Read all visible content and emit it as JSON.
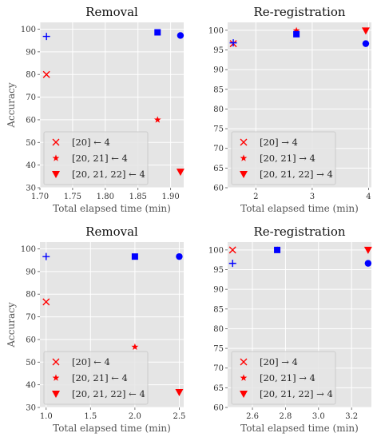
{
  "chart_data": [
    {
      "type": "scatter",
      "title": "Removal",
      "xlabel": "Total elapsed time (min)",
      "ylabel": "Accuracy",
      "xlim": [
        1.7,
        1.92
      ],
      "ylim": [
        30,
        103
      ],
      "xticks": [
        1.7,
        1.75,
        1.8,
        1.85,
        1.9
      ],
      "xtick_labels": [
        "1.70",
        "1.75",
        "1.80",
        "1.85",
        "1.90"
      ],
      "yticks": [
        30,
        40,
        50,
        60,
        70,
        80,
        90,
        100
      ],
      "ytick_labels": [
        "30",
        "40",
        "50",
        "60",
        "70",
        "80",
        "90",
        "100"
      ],
      "grid": true,
      "legend_position": "lower-left",
      "series": [
        {
          "name": "[20] ← 4",
          "marker": "x",
          "color": "#ff0000",
          "points": [
            [
              1.71,
              80.0
            ]
          ]
        },
        {
          "name": "[20, 21] ← 4",
          "marker": "star",
          "color": "#ff0000",
          "points": [
            [
              1.88,
              60.0
            ]
          ]
        },
        {
          "name": "[20, 21, 22] ← 4",
          "marker": "triangle-down",
          "color": "#ff0000",
          "points": [
            [
              1.915,
              37.0
            ]
          ]
        },
        {
          "marker": "plus",
          "color": "#0000ff",
          "points": [
            [
              1.71,
              96.8
            ]
          ]
        },
        {
          "marker": "square",
          "color": "#0000ff",
          "points": [
            [
              1.88,
              98.6
            ]
          ]
        },
        {
          "marker": "circle",
          "color": "#0000ff",
          "points": [
            [
              1.915,
              97.2
            ]
          ]
        }
      ]
    },
    {
      "type": "scatter",
      "title": "Re-registration",
      "xlabel": "Total elapsed time (min)",
      "ylabel": "",
      "xlim": [
        1.5,
        4.05
      ],
      "ylim": [
        60,
        102
      ],
      "xticks": [
        2,
        3,
        4
      ],
      "xtick_labels": [
        "2",
        "3",
        "4"
      ],
      "yticks": [
        60,
        65,
        70,
        75,
        80,
        85,
        90,
        95,
        100
      ],
      "ytick_labels": [
        "60",
        "65",
        "70",
        "75",
        "80",
        "85",
        "90",
        "95",
        "100"
      ],
      "grid": true,
      "legend_position": "lower-left",
      "series": [
        {
          "name": "[20] → 4",
          "marker": "x",
          "color": "#ff0000",
          "points": [
            [
              1.6,
              96.6
            ]
          ]
        },
        {
          "name": "[20, 21] → 4",
          "marker": "star",
          "color": "#ff0000",
          "points": [
            [
              2.72,
              99.9
            ]
          ]
        },
        {
          "name": "[20, 21, 22] → 4",
          "marker": "triangle-down",
          "color": "#ff0000",
          "points": [
            [
              3.95,
              99.9
            ]
          ]
        },
        {
          "marker": "plus",
          "color": "#0000ff",
          "points": [
            [
              1.6,
              96.8
            ]
          ]
        },
        {
          "marker": "square",
          "color": "#0000ff",
          "points": [
            [
              2.72,
              99.0
            ]
          ]
        },
        {
          "marker": "circle",
          "color": "#0000ff",
          "points": [
            [
              3.95,
              96.6
            ]
          ]
        }
      ]
    },
    {
      "type": "scatter",
      "title": "Removal",
      "xlabel": "Total elapsed time (min)",
      "ylabel": "Accuracy",
      "xlim": [
        0.93,
        2.55
      ],
      "ylim": [
        30,
        103
      ],
      "xticks": [
        1.0,
        1.5,
        2.0,
        2.5
      ],
      "xtick_labels": [
        "1.0",
        "1.5",
        "2.0",
        "2.5"
      ],
      "yticks": [
        30,
        40,
        50,
        60,
        70,
        80,
        90,
        100
      ],
      "ytick_labels": [
        "30",
        "40",
        "50",
        "60",
        "70",
        "80",
        "90",
        "100"
      ],
      "grid": true,
      "legend_position": "lower-left",
      "series": [
        {
          "name": "[20] ← 4",
          "marker": "x",
          "color": "#ff0000",
          "points": [
            [
              1.0,
              76.6
            ]
          ]
        },
        {
          "name": "[20, 21] ← 4",
          "marker": "star",
          "color": "#ff0000",
          "points": [
            [
              2.0,
              56.7
            ]
          ]
        },
        {
          "name": "[20, 21, 22] ← 4",
          "marker": "triangle-down",
          "color": "#ff0000",
          "points": [
            [
              2.5,
              36.7
            ]
          ]
        },
        {
          "marker": "plus",
          "color": "#0000ff",
          "points": [
            [
              1.0,
              96.6
            ]
          ]
        },
        {
          "marker": "square",
          "color": "#0000ff",
          "points": [
            [
              2.0,
              96.6
            ]
          ]
        },
        {
          "marker": "circle",
          "color": "#0000ff",
          "points": [
            [
              2.5,
              96.6
            ]
          ]
        }
      ]
    },
    {
      "type": "scatter",
      "title": "Re-registration",
      "xlabel": "Total elapsed time (min)",
      "ylabel": "",
      "xlim": [
        2.45,
        3.32
      ],
      "ylim": [
        60,
        102
      ],
      "xticks": [
        2.6,
        2.8,
        3.0,
        3.2
      ],
      "xtick_labels": [
        "2.6",
        "2.8",
        "3.0",
        "3.2"
      ],
      "yticks": [
        60,
        65,
        70,
        75,
        80,
        85,
        90,
        95,
        100
      ],
      "ytick_labels": [
        "60",
        "65",
        "70",
        "75",
        "80",
        "85",
        "90",
        "95",
        "100"
      ],
      "grid": true,
      "legend_position": "lower-left",
      "series": [
        {
          "name": "[20] → 4",
          "marker": "x",
          "color": "#ff0000",
          "points": [
            [
              2.48,
              100.0
            ]
          ]
        },
        {
          "name": "[20, 21] → 4",
          "marker": "star",
          "color": "#ff0000",
          "points": [
            [
              2.75,
              100.0
            ]
          ]
        },
        {
          "name": "[20, 21, 22] → 4",
          "marker": "triangle-down",
          "color": "#ff0000",
          "points": [
            [
              3.3,
              100.0
            ]
          ]
        },
        {
          "marker": "plus",
          "color": "#0000ff",
          "points": [
            [
              2.48,
              96.6
            ]
          ]
        },
        {
          "marker": "square",
          "color": "#0000ff",
          "points": [
            [
              2.75,
              100.0
            ]
          ]
        },
        {
          "marker": "circle",
          "color": "#0000ff",
          "points": [
            [
              3.3,
              96.6
            ]
          ]
        }
      ]
    }
  ],
  "colors": {
    "panel_background": "#e5e5e5",
    "grid": "#ffffff",
    "legend_frame": "#cccccc"
  }
}
